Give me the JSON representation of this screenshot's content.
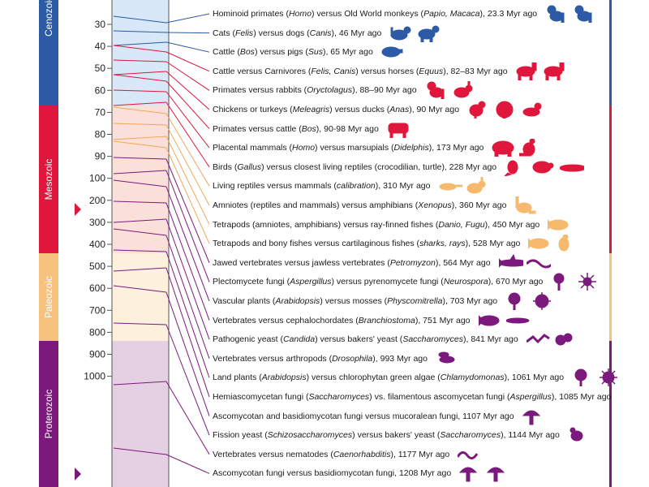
{
  "colors": {
    "cenozoic": "#2c5aa5",
    "mesozoic": "#e0173c",
    "paleozoic": "#f7c27d",
    "proterozoic": "#7b1a7c",
    "cenozoic_bg": "#d8e8f8",
    "mesozoic_bg": "#fbe0d9",
    "paleozoic_bg": "#fdf0dc",
    "proterozoic_bg": "#e4cfe3"
  },
  "eras": [
    {
      "name": "Cenozoic",
      "label": "Cenozoic",
      "color": "#2c5aa5"
    },
    {
      "name": "Mesozoic",
      "label": "Mesozoic",
      "color": "#e0173c"
    },
    {
      "name": "Paleozoic",
      "label": "Paleozoic",
      "color": "#f7c27d"
    },
    {
      "name": "Proterozoic",
      "label": "Proterozoic",
      "color": "#7b1a7c"
    }
  ],
  "axis_ticks": [
    "30",
    "40",
    "50",
    "60",
    "70",
    "80",
    "90",
    "100",
    "200",
    "300",
    "400",
    "500",
    "600",
    "700",
    "800",
    "900",
    "1000"
  ],
  "divergences": [
    {
      "era": "cenozoic",
      "parts": [
        {
          "t": "Hominoid primates ("
        },
        {
          "t": "Homo",
          "i": true
        },
        {
          "t": ") versus Old World monkeys ("
        },
        {
          "t": "Papio, Macaca",
          "i": true
        },
        {
          "t": "), 23.3 Myr ago"
        }
      ],
      "icons": [
        "monkey",
        "monkey"
      ]
    },
    {
      "era": "cenozoic",
      "parts": [
        {
          "t": "Cats ("
        },
        {
          "t": "Felis",
          "i": true
        },
        {
          "t": ") versus dogs ("
        },
        {
          "t": "Canis",
          "i": true
        },
        {
          "t": "), 46 Myr ago"
        }
      ],
      "icons": [
        "cat",
        "dog"
      ]
    },
    {
      "era": "cenozoic",
      "parts": [
        {
          "t": "Cattle ("
        },
        {
          "t": "Bos",
          "i": true
        },
        {
          "t": ") versus pigs ("
        },
        {
          "t": "Sus",
          "i": true
        },
        {
          "t": "), 65 Myr ago"
        }
      ],
      "icons": [
        "pig"
      ]
    },
    {
      "era": "mesozoic",
      "parts": [
        {
          "t": "Cattle versus Carnivores ("
        },
        {
          "t": "Felis, Canis",
          "i": true
        },
        {
          "t": ") versus horses ("
        },
        {
          "t": "Equus",
          "i": true
        },
        {
          "t": "), 82–83 Myr ago"
        }
      ],
      "icons": [
        "horse",
        "horse"
      ]
    },
    {
      "era": "mesozoic",
      "parts": [
        {
          "t": "Primates versus rabbits ("
        },
        {
          "t": "Oryctolagus",
          "i": true
        },
        {
          "t": "), 88–90 Myr ago"
        }
      ],
      "icons": [
        "monkey",
        "rabbit"
      ]
    },
    {
      "era": "mesozoic",
      "parts": [
        {
          "t": "Chickens or turkeys ("
        },
        {
          "t": "Meleagris",
          "i": true
        },
        {
          "t": ") versus ducks ("
        },
        {
          "t": "Anas",
          "i": true
        },
        {
          "t": "), 90 Myr ago"
        }
      ],
      "icons": [
        "chicken",
        "turkey",
        "duck"
      ]
    },
    {
      "era": "mesozoic",
      "parts": [
        {
          "t": "Primates versus cattle ("
        },
        {
          "t": "Bos",
          "i": true
        },
        {
          "t": "), 90-98 Myr ago"
        }
      ],
      "icons": [
        "cow"
      ]
    },
    {
      "era": "mesozoic",
      "parts": [
        {
          "t": "Placental mammals ("
        },
        {
          "t": "Homo",
          "i": true
        },
        {
          "t": ") versus marsupials ("
        },
        {
          "t": "Didelphis",
          "i": true
        },
        {
          "t": "), 173 Myr ago"
        }
      ],
      "icons": [
        "bear",
        "kangaroo"
      ]
    },
    {
      "era": "mesozoic",
      "parts": [
        {
          "t": "Birds ("
        },
        {
          "t": "Gallus",
          "i": true
        },
        {
          "t": ") versus closest living reptiles (crocodilian, turtle), 228 Myr ago"
        }
      ],
      "icons": [
        "bird",
        "turtle",
        "crocodile"
      ]
    },
    {
      "era": "paleozoic",
      "parts": [
        {
          "t": "Living reptiles versus mammals ("
        },
        {
          "t": "calibration",
          "i": true
        },
        {
          "t": "), 310 Myr ago"
        }
      ],
      "icons": [
        "lizard",
        "rabbit"
      ]
    },
    {
      "era": "paleozoic",
      "parts": [
        {
          "t": "Amniotes (reptiles and mammals) versus amphibians ("
        },
        {
          "t": "Xenopus",
          "i": true
        },
        {
          "t": "), 360 Myr ago"
        }
      ],
      "icons": [
        "frog"
      ]
    },
    {
      "era": "paleozoic",
      "parts": [
        {
          "t": "Tetrapods (amniotes, amphibians) versus ray-finned fishes ("
        },
        {
          "t": "Danio, Fugu",
          "i": true
        },
        {
          "t": "), 450 Myr ago"
        }
      ],
      "icons": [
        "fish"
      ]
    },
    {
      "era": "paleozoic",
      "parts": [
        {
          "t": "Tetrapods and bony fishes versus cartilaginous fishes ("
        },
        {
          "t": "sharks, rays",
          "i": true
        },
        {
          "t": "), 528 Myr ago"
        }
      ],
      "icons": [
        "fish",
        "seahorse"
      ]
    },
    {
      "era": "proterozoic",
      "parts": [
        {
          "t": "Jawed vertebrates versus jawless vertebrates ("
        },
        {
          "t": "Petromyzon",
          "i": true
        },
        {
          "t": "), 564 Myr ago"
        }
      ],
      "icons": [
        "shark",
        "eel"
      ]
    },
    {
      "era": "proterozoic",
      "parts": [
        {
          "t": "Plectomycete fungi ("
        },
        {
          "t": "Aspergillus",
          "i": true
        },
        {
          "t": ") versus pyrenomycete fungi ("
        },
        {
          "t": "Neurospora",
          "i": true
        },
        {
          "t": "), 670 Myr ago"
        }
      ],
      "icons": [
        "fungus",
        "spore"
      ]
    },
    {
      "era": "proterozoic",
      "parts": [
        {
          "t": "Vascular plants ("
        },
        {
          "t": "Arabidopsis",
          "i": true
        },
        {
          "t": ") versus mosses ("
        },
        {
          "t": "Physcomitrella",
          "i": true
        },
        {
          "t": "), 703 Myr ago"
        }
      ],
      "icons": [
        "plant",
        "moss"
      ]
    },
    {
      "era": "proterozoic",
      "parts": [
        {
          "t": "Vertebrates versus cephalochordates ("
        },
        {
          "t": "Branchiostoma",
          "i": true
        },
        {
          "t": "), 751 Myr ago"
        }
      ],
      "icons": [
        "fish",
        "lancelet"
      ]
    },
    {
      "era": "proterozoic",
      "parts": [
        {
          "t": "Pathogenic yeast ("
        },
        {
          "t": "Candida",
          "i": true
        },
        {
          "t": ") versus bakers' yeast ("
        },
        {
          "t": "Saccharomyces",
          "i": true
        },
        {
          "t": "), 841 Myr ago"
        }
      ],
      "icons": [
        "hyphae",
        "yeast"
      ]
    },
    {
      "era": "proterozoic",
      "parts": [
        {
          "t": "Vertebrates versus arthropods ("
        },
        {
          "t": "Drosophila",
          "i": true
        },
        {
          "t": "), 993 Myr ago"
        }
      ],
      "icons": [
        "fly"
      ]
    },
    {
      "era": "proterozoic",
      "parts": [
        {
          "t": "Land plants ("
        },
        {
          "t": "Arabidopsis",
          "i": true
        },
        {
          "t": ") versus chlorophytan green algae ("
        },
        {
          "t": "Chlamydomonas",
          "i": true
        },
        {
          "t": "), 1061 Myr ago"
        }
      ],
      "icons": [
        "plant",
        "alga"
      ]
    },
    {
      "era": "proterozoic",
      "parts": [
        {
          "t": "Hemiascomycetan fungi ("
        },
        {
          "t": "Saccharomyces",
          "i": true
        },
        {
          "t": ") vs. filamentous ascomycetan fungi ("
        },
        {
          "t": "Aspergillus",
          "i": true
        },
        {
          "t": "), 1085 Myr ago"
        }
      ],
      "icons": [
        "yeast"
      ]
    },
    {
      "era": "proterozoic",
      "parts": [
        {
          "t": "Ascomycotan and basidiomycotan fungi versus mucoralean fungi, 1107 Myr ago"
        }
      ],
      "icons": [
        "mushroom"
      ]
    },
    {
      "era": "proterozoic",
      "parts": [
        {
          "t": "Fission yeast ("
        },
        {
          "t": "Schizosaccharomyces",
          "i": true
        },
        {
          "t": ") versus bakers' yeast ("
        },
        {
          "t": "Saccharomyces",
          "i": true
        },
        {
          "t": "), 1144 Myr ago"
        }
      ],
      "icons": [
        "yeast-cell"
      ]
    },
    {
      "era": "proterozoic",
      "parts": [
        {
          "t": "Vertebrates versus nematodes ("
        },
        {
          "t": "Caenorhabditis",
          "i": true
        },
        {
          "t": "), 1177 Myr ago"
        }
      ],
      "icons": [
        "worm"
      ]
    },
    {
      "era": "proterozoic",
      "parts": [
        {
          "t": "Ascomycotan fungi versus basidiomycotan fungi, 1208 Myr ago"
        }
      ],
      "icons": [
        "mushroom",
        "mushroom"
      ]
    }
  ]
}
